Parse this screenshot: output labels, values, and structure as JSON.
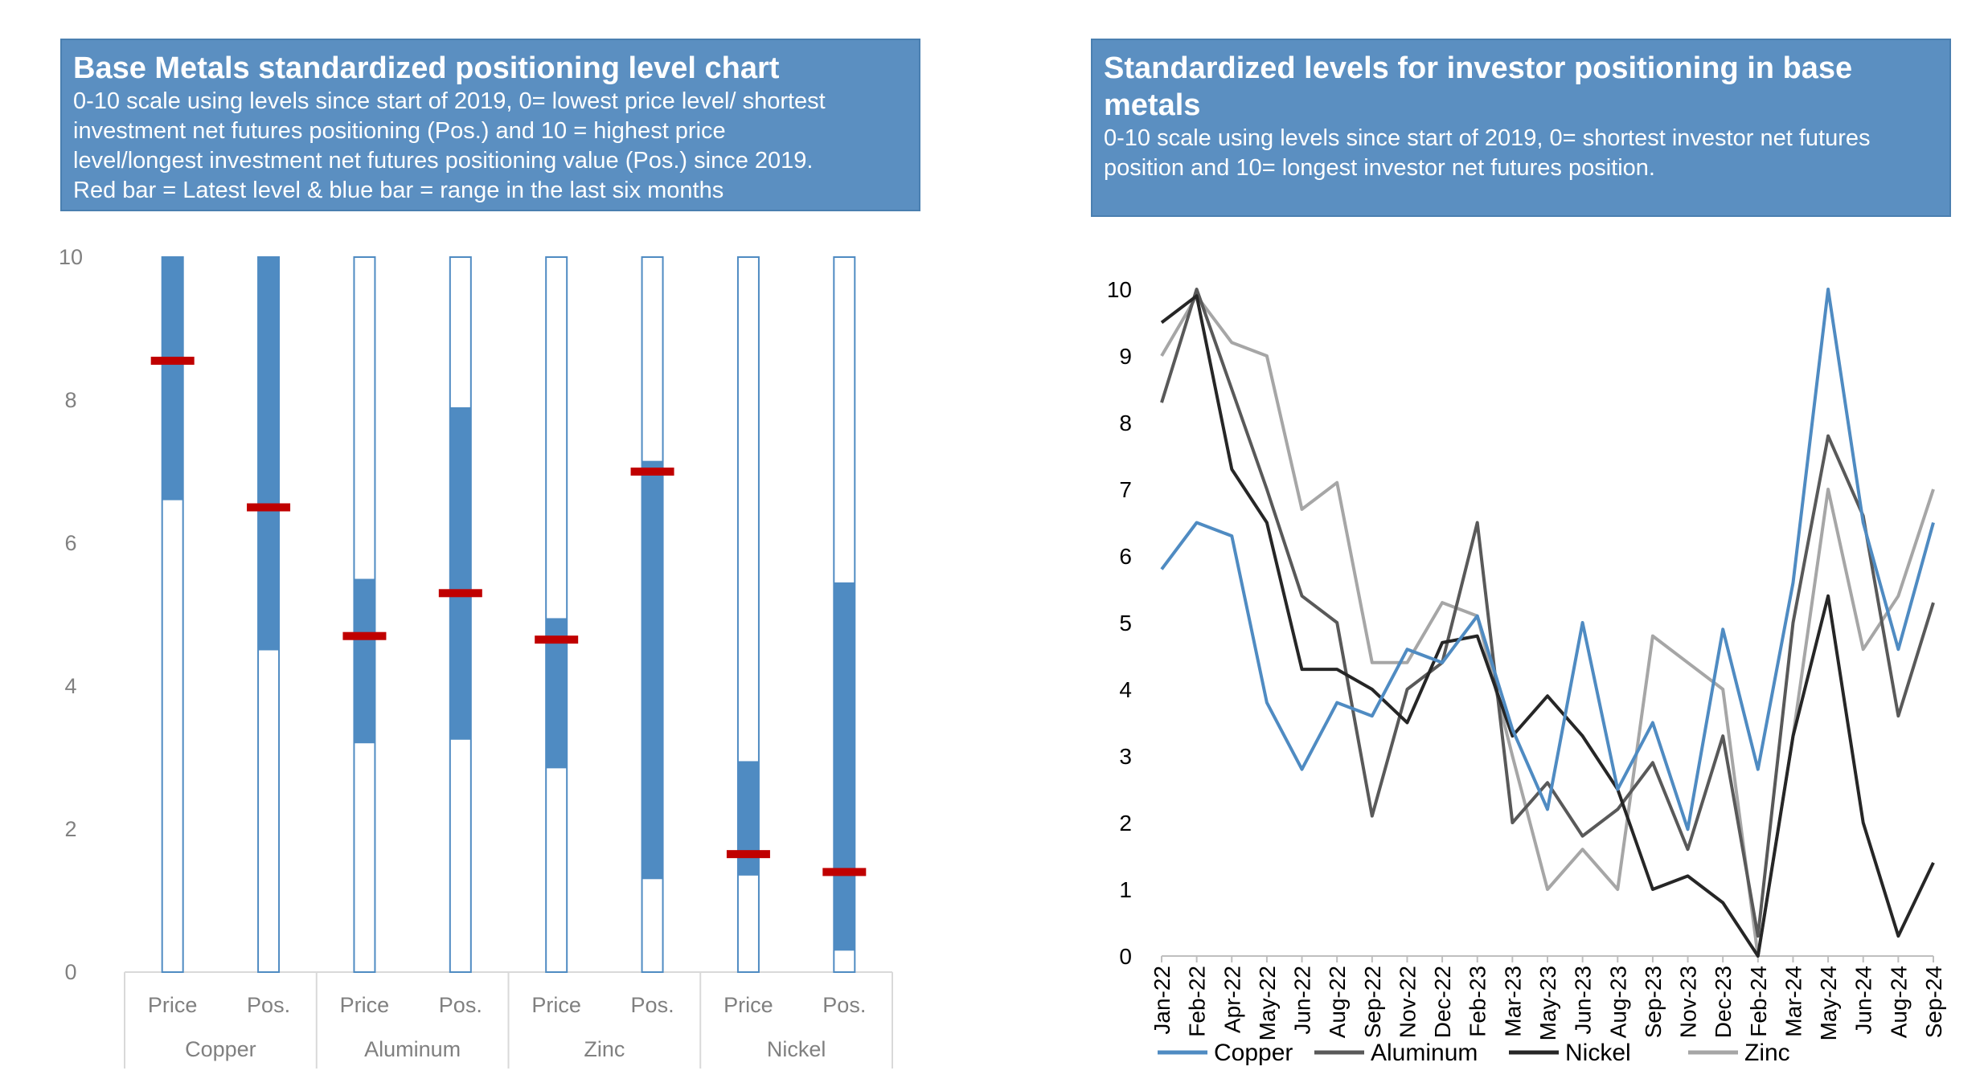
{
  "left_panel": {
    "title": "Base Metals standardized positioning level chart",
    "subtitle_lines": [
      "0-10 scale using levels since start of 2019, 0= lowest price level/ shortest",
      "investment net futures positioning (Pos.) and 10 = highest price",
      "level/longest investment net futures positioning value (Pos.) since 2019.",
      "Red bar = Latest level & blue bar = range in the last six months"
    ]
  },
  "right_panel": {
    "title_lines": [
      "Standardized levels for investor positioning in base",
      "metals"
    ],
    "subtitle_lines": [
      "0-10 scale using levels since start of 2019, 0= shortest investor net futures",
      "position and 10= longest investor net futures position."
    ]
  },
  "colors": {
    "range": "#4f8bc2",
    "latest": "#c00000",
    "outline": "#4f8bc2",
    "copper": "#4f8bc2",
    "aluminum": "#595959",
    "nickel": "#262626",
    "zinc": "#a6a6a6"
  },
  "chart_data": [
    {
      "type": "bar",
      "subtype": "range-with-latest-marker",
      "ylim": [
        0,
        10
      ],
      "yticks": [
        "0",
        "2",
        "4",
        "6",
        "8",
        "10"
      ],
      "groups": [
        "Copper",
        "Aluminum",
        "Zinc",
        "Nickel"
      ],
      "bars": [
        {
          "group": "Copper",
          "label": "Price",
          "low": 6.6,
          "high": 10,
          "latest": 8.55
        },
        {
          "group": "Copper",
          "label": "Pos.",
          "low": 4.5,
          "high": 10,
          "latest": 6.5
        },
        {
          "group": "Aluminum",
          "label": "Price",
          "low": 3.2,
          "high": 5.5,
          "latest": 4.7
        },
        {
          "group": "Aluminum",
          "label": "Pos.",
          "low": 3.25,
          "high": 7.9,
          "latest": 5.3
        },
        {
          "group": "Zinc",
          "label": "Price",
          "low": 2.85,
          "high": 4.95,
          "latest": 4.65
        },
        {
          "group": "Zinc",
          "label": "Pos.",
          "low": 1.3,
          "high": 7.15,
          "latest": 7.0
        },
        {
          "group": "Nickel",
          "label": "Price",
          "low": 1.35,
          "high": 2.95,
          "latest": 1.65
        },
        {
          "group": "Nickel",
          "label": "Pos.",
          "low": 0.3,
          "high": 5.45,
          "latest": 1.4
        }
      ]
    },
    {
      "type": "line",
      "ylim": [
        0,
        10
      ],
      "yticks": [
        "0",
        "1",
        "2",
        "3",
        "4",
        "5",
        "6",
        "7",
        "8",
        "9",
        "10"
      ],
      "x": [
        "Jan-22",
        "Feb-22",
        "Apr-22",
        "May-22",
        "Jun-22",
        "Aug-22",
        "Sep-22",
        "Nov-22",
        "Dec-22",
        "Feb-23",
        "Mar-23",
        "May-23",
        "Jun-23",
        "Aug-23",
        "Sep-23",
        "Nov-23",
        "Dec-23",
        "Feb-24",
        "Mar-24",
        "May-24",
        "Jun-24",
        "Aug-24",
        "Sep-24"
      ],
      "legend": "bottom",
      "series": [
        {
          "name": "Copper",
          "values": [
            5.8,
            6.5,
            6.3,
            3.8,
            2.8,
            3.8,
            3.6,
            4.6,
            4.4,
            5.1,
            3.4,
            2.2,
            5.0,
            2.5,
            3.5,
            1.9,
            4.9,
            2.8,
            5.6,
            10.0,
            6.5,
            4.6,
            6.5
          ]
        },
        {
          "name": "Aluminum",
          "values": [
            8.3,
            10.0,
            8.5,
            7.0,
            5.4,
            5.0,
            2.1,
            4.0,
            4.4,
            6.5,
            2.0,
            2.6,
            1.8,
            2.2,
            2.9,
            1.6,
            3.3,
            0.3,
            5.0,
            7.8,
            6.6,
            3.6,
            5.3
          ]
        },
        {
          "name": "Nickel",
          "values": [
            9.5,
            9.9,
            7.3,
            6.5,
            4.3,
            4.3,
            4.0,
            3.5,
            4.7,
            4.8,
            3.3,
            3.9,
            3.3,
            2.5,
            1.0,
            1.2,
            0.8,
            0.0,
            3.3,
            5.4,
            2.0,
            0.3,
            1.4
          ]
        },
        {
          "name": "Zinc",
          "values": [
            9.0,
            9.9,
            9.2,
            9.0,
            6.7,
            7.1,
            4.4,
            4.4,
            5.3,
            5.1,
            3.0,
            1.0,
            1.6,
            1.0,
            4.8,
            4.4,
            4.0,
            0.0,
            3.3,
            7.0,
            4.6,
            5.4,
            7.0
          ]
        }
      ]
    }
  ]
}
